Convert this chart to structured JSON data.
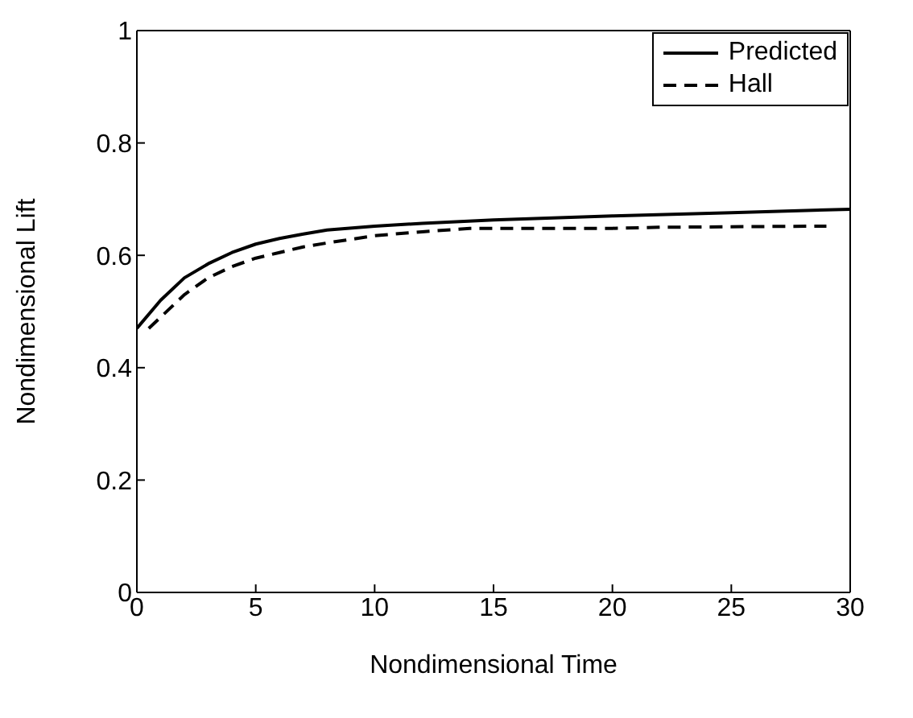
{
  "chart_data": {
    "type": "line",
    "xlabel": "Nondimensional Time",
    "ylabel": "Nondimensional Lift",
    "xlim": [
      0,
      30
    ],
    "ylim": [
      0,
      1
    ],
    "xticks": [
      0,
      5,
      10,
      15,
      20,
      25,
      30
    ],
    "yticks": [
      0,
      0.2,
      0.4,
      0.6,
      0.8,
      1
    ],
    "grid": false,
    "legend": "top right",
    "marker": "none",
    "series": [
      {
        "name": "Predicted",
        "color": "#000000",
        "line_style": "solid",
        "x": [
          0,
          1,
          2,
          3,
          4,
          5,
          6,
          7,
          8,
          10,
          12,
          15,
          20,
          25,
          30
        ],
        "values": [
          0.47,
          0.52,
          0.56,
          0.585,
          0.605,
          0.62,
          0.63,
          0.638,
          0.645,
          0.652,
          0.657,
          0.663,
          0.67,
          0.676,
          0.682
        ]
      },
      {
        "name": "Hall",
        "color": "#000000",
        "line_style": "dashed",
        "x": [
          0.5,
          1,
          2,
          3,
          4,
          5,
          6,
          7,
          8,
          10,
          12,
          14,
          20,
          22,
          29
        ],
        "values": [
          0.47,
          0.49,
          0.53,
          0.56,
          0.58,
          0.595,
          0.605,
          0.615,
          0.622,
          0.635,
          0.642,
          0.648,
          0.648,
          0.65,
          0.652
        ]
      }
    ]
  }
}
